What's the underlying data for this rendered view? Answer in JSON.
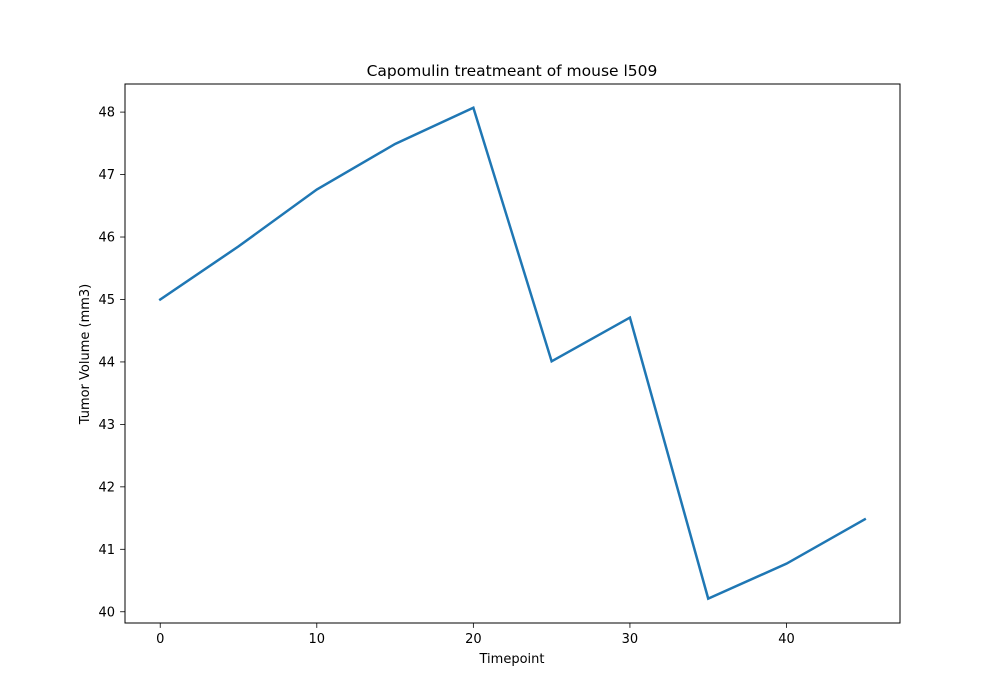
{
  "chart_data": {
    "type": "line",
    "title": "Capomulin treatmeant of mouse l509",
    "xlabel": "Timepoint",
    "ylabel": "Tumor Volume (mm3)",
    "xlim": [
      -2.25,
      47.25
    ],
    "ylim": [
      39.82,
      48.45
    ],
    "xticks": [
      0,
      10,
      20,
      30,
      40
    ],
    "xtick_labels": [
      "0",
      "10",
      "20",
      "30",
      "40"
    ],
    "yticks": [
      40,
      41,
      42,
      43,
      44,
      45,
      46,
      47,
      48
    ],
    "ytick_labels": [
      "40",
      "41",
      "42",
      "43",
      "44",
      "45",
      "46",
      "47",
      "48"
    ],
    "grid": false,
    "series": [
      {
        "color": "#1f77b4",
        "x": [
          0,
          5,
          10,
          15,
          20,
          25,
          30,
          35,
          40,
          45
        ],
        "y": [
          45.0,
          45.85,
          46.76,
          47.49,
          48.07,
          44.01,
          44.71,
          40.21,
          40.77,
          41.48
        ]
      }
    ]
  }
}
